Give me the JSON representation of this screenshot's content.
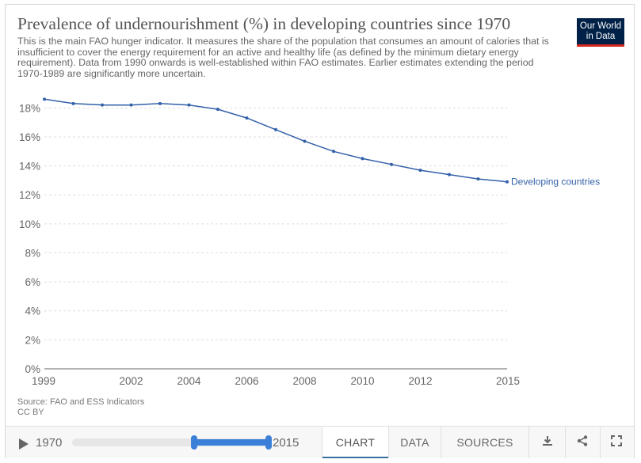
{
  "header": {
    "title": "Prevalence of undernourishment (%) in developing countries since 1970",
    "subtitle": "This is the main FAO hunger indicator. It measures the share of the population that consumes an amount of calories that is insufficient to cover the energy requirement for an active and healthy life (as defined by the minimum dietary energy requirement). Data from 1990 onwards is well-established within FAO estimates. Earlier estimates extending the period 1970-1989 are significantly more uncertain.",
    "logo_line1": "Our World",
    "logo_line2": "in Data"
  },
  "source": {
    "line1": "Source: FAO and ESS Indicators",
    "line2": "CC BY"
  },
  "footer": {
    "start_year": "1970",
    "end_year": "2015",
    "tabs": [
      "CHART",
      "DATA",
      "SOURCES"
    ],
    "active_tab": "CHART",
    "icons": [
      "download-icon",
      "share-icon",
      "fullscreen-icon"
    ],
    "timeline_range": [
      0.62,
      1.0
    ]
  },
  "colors": {
    "series": "#3360a9",
    "accent": "#3b7fd9",
    "logo_bg": "#002147",
    "logo_stripe": "#ce261e"
  },
  "chart_data": {
    "type": "line",
    "title": "Prevalence of undernourishment (%) in developing countries since 1970",
    "xlabel": "",
    "ylabel": "",
    "xlim": [
      1999,
      2015
    ],
    "ylim": [
      0,
      19
    ],
    "x_ticks": [
      1999,
      2002,
      2004,
      2006,
      2008,
      2010,
      2012,
      2015
    ],
    "y_ticks": [
      0,
      2,
      4,
      6,
      8,
      10,
      12,
      14,
      16,
      18
    ],
    "y_tick_labels": [
      "0%",
      "2%",
      "4%",
      "6%",
      "8%",
      "10%",
      "12%",
      "14%",
      "16%",
      "18%"
    ],
    "grid": true,
    "series": [
      {
        "name": "Developing countries",
        "x": [
          1999,
          2000,
          2001,
          2002,
          2003,
          2004,
          2005,
          2006,
          2007,
          2008,
          2009,
          2010,
          2011,
          2012,
          2013,
          2014,
          2015
        ],
        "values": [
          18.6,
          18.3,
          18.2,
          18.2,
          18.3,
          18.2,
          17.9,
          17.3,
          16.5,
          15.7,
          15.0,
          14.5,
          14.1,
          13.7,
          13.4,
          13.1,
          12.9
        ]
      }
    ]
  }
}
